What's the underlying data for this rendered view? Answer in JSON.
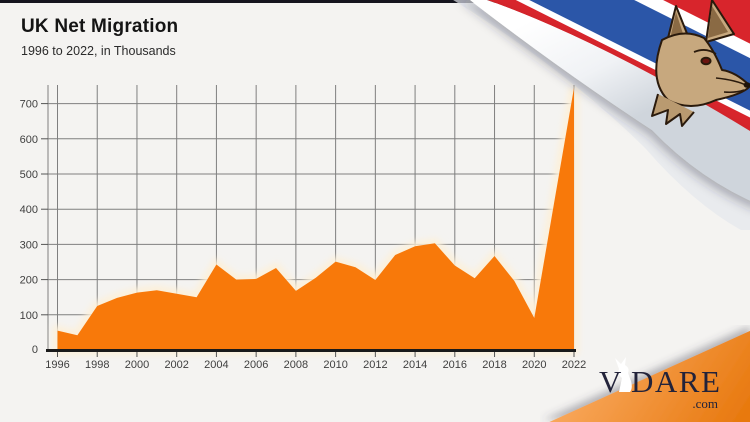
{
  "page": {
    "background": "#f4f3f1",
    "top_bar_color": "#15151e"
  },
  "header": {
    "title": "UK Net Migration",
    "subtitle": "1996 to 2022, in Thousands"
  },
  "chart_data": {
    "type": "area",
    "title": "UK Net Migration",
    "subtitle": "1996 to 2022, in Thousands",
    "unit": "thousands",
    "xlabel": "",
    "ylabel": "",
    "grid": true,
    "legend": "none",
    "ylim": [
      0,
      753
    ],
    "y_ticks": [
      0,
      100,
      200,
      300,
      400,
      500,
      600,
      700
    ],
    "x_tick_labels": [
      "1996",
      "1998",
      "2000",
      "2002",
      "2004",
      "2006",
      "2008",
      "2010",
      "2012",
      "2014",
      "2016",
      "2018",
      "2020",
      "2022"
    ],
    "years": [
      1996,
      1997,
      1998,
      1999,
      2000,
      2001,
      2002,
      2003,
      2004,
      2005,
      2006,
      2007,
      2008,
      2009,
      2010,
      2011,
      2012,
      2013,
      2014,
      2015,
      2016,
      2017,
      2018,
      2019,
      2020,
      2021,
      2022
    ],
    "values": [
      55,
      42,
      125,
      148,
      163,
      170,
      160,
      150,
      243,
      200,
      202,
      233,
      168,
      205,
      251,
      235,
      199,
      270,
      295,
      303,
      240,
      204,
      267,
      196,
      91,
      418,
      745
    ],
    "area_color": "#f8790a",
    "glow_color": "#fdf0d8",
    "grid_color": "#7f7f7f",
    "axis_color": "#1a1a1a",
    "tick_label_color": "#3f3f3f"
  },
  "logo": {
    "mark_v": "V",
    "mark_rest": "DARE",
    "tld": ".com",
    "text_color": "#23233a",
    "wedge_color_light": "#f9a95e",
    "wedge_color_dark": "#e8790f"
  },
  "decorations": {
    "flag": "union-jack-page-curl",
    "mascot": "jackal-head"
  }
}
